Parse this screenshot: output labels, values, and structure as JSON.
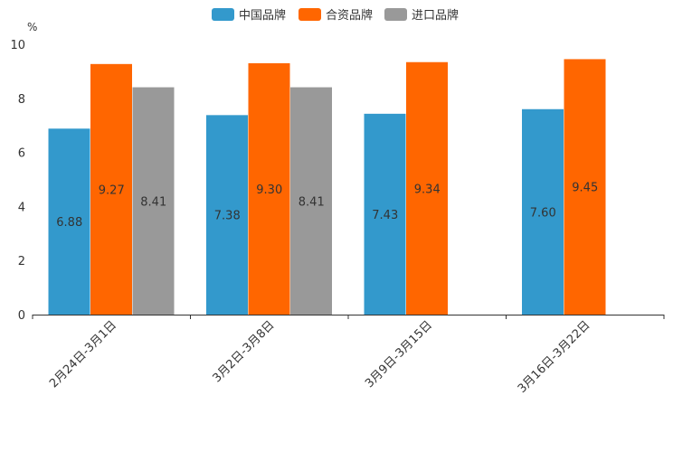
{
  "chart_data": {
    "type": "bar",
    "title": "",
    "ylabel": "%",
    "xlabel": "",
    "ylim": [
      0,
      10
    ],
    "yticks": [
      0,
      2,
      4,
      6,
      8,
      10
    ],
    "grid": false,
    "legend_position": "top-center",
    "categories": [
      "2月24日-3月1日",
      "3月2日-3月8日",
      "3月9日-3月15日",
      "3月16日-3月22日"
    ],
    "series": [
      {
        "name": "中国品牌",
        "color": "#3399cc",
        "values": [
          6.88,
          7.38,
          7.43,
          7.6
        ],
        "labels": [
          "6.88",
          "7.38",
          "7.43",
          "7.60"
        ]
      },
      {
        "name": "合资品牌",
        "color": "#ff6600",
        "values": [
          9.27,
          9.3,
          9.34,
          9.45
        ],
        "labels": [
          "9.27",
          "9.30",
          "9.34",
          "9.45"
        ]
      },
      {
        "name": "进口品牌",
        "color": "#999999",
        "values": [
          8.41,
          8.41,
          null,
          null
        ],
        "labels": [
          "8.41",
          "8.41",
          null,
          null
        ]
      }
    ]
  }
}
